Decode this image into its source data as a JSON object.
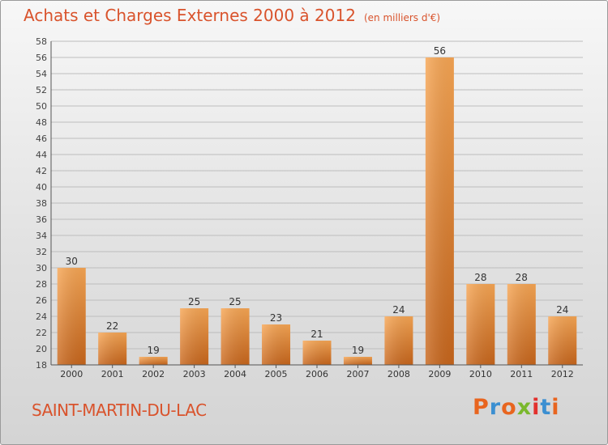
{
  "header": {
    "title": "Achats et Charges Externes 2000 à 2012",
    "unit": "(en milliers d'€)"
  },
  "footer": {
    "commune": "SAINT-MARTIN-DU-LAC",
    "brand": "Proxiti",
    "brand_colors": [
      "#e8651f",
      "#3b8fd1",
      "#e8651f",
      "#7ab82d",
      "#e2312d",
      "#3b8fd1",
      "#e8651f"
    ]
  },
  "colors": {
    "title": "#d9532c",
    "bar_light": "#f7a654",
    "bar_dark": "#c8661c",
    "grid": "#bdbdbd",
    "axis": "#555555"
  },
  "chart_data": {
    "type": "bar",
    "categories": [
      "2000",
      "2001",
      "2002",
      "2003",
      "2004",
      "2005",
      "2006",
      "2007",
      "2008",
      "2009",
      "2010",
      "2011",
      "2012"
    ],
    "values": [
      30,
      22,
      19,
      25,
      25,
      23,
      21,
      19,
      24,
      56,
      28,
      28,
      24
    ],
    "data_labels": [
      "30",
      "22",
      "19",
      "25",
      "25",
      "23",
      "21",
      "19",
      "24",
      "56",
      "28",
      "28",
      "24"
    ],
    "yticks": [
      18,
      20,
      22,
      24,
      26,
      28,
      30,
      32,
      34,
      36,
      38,
      40,
      42,
      44,
      46,
      48,
      50,
      52,
      54,
      56,
      58
    ],
    "ylim": [
      18,
      58
    ],
    "grid": true,
    "legend": "none"
  }
}
